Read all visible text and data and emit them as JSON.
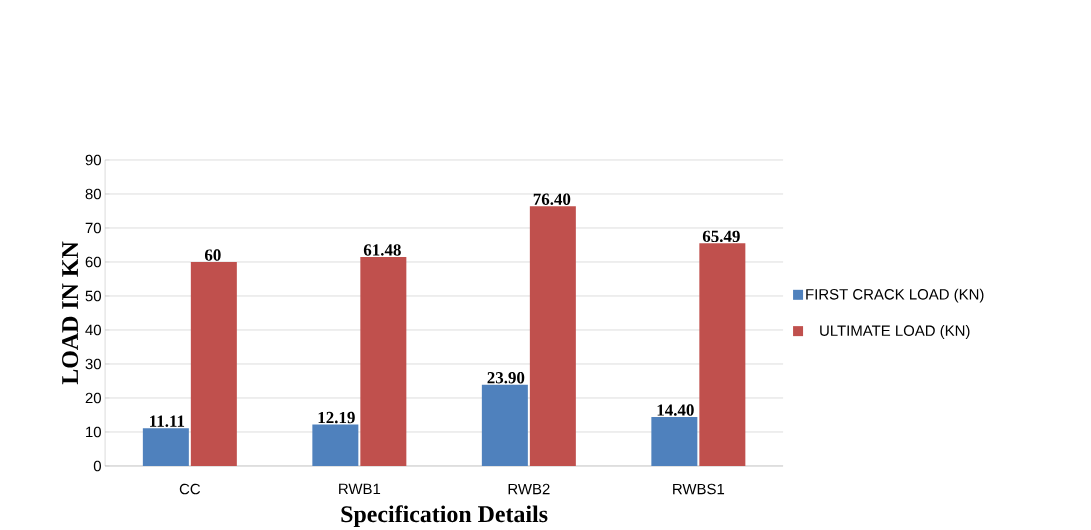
{
  "chart_data": {
    "type": "bar",
    "xlabel": "Specification Details",
    "ylabel": "LOAD IN KN",
    "categories": [
      "CC",
      "RWB1",
      "RWB2",
      "RWBS1"
    ],
    "series": [
      {
        "name": "FIRST CRACK LOAD (KN)",
        "color": "#4f81bd",
        "values": [
          11.11,
          12.19,
          23.9,
          14.4
        ],
        "value_labels": [
          "11.11",
          "12.19",
          "23.90",
          "14.40"
        ]
      },
      {
        "name": "ULTIMATE LOAD (KN)",
        "color": "#c0504d",
        "values": [
          60,
          61.48,
          76.4,
          65.49
        ],
        "value_labels": [
          "60",
          "61.48",
          "76.40",
          "65.49"
        ]
      }
    ],
    "ylim": [
      0,
      90
    ],
    "yticks": [
      0,
      10,
      20,
      30,
      40,
      50,
      60,
      70,
      80,
      90
    ],
    "grid": "y",
    "legend": "right"
  }
}
